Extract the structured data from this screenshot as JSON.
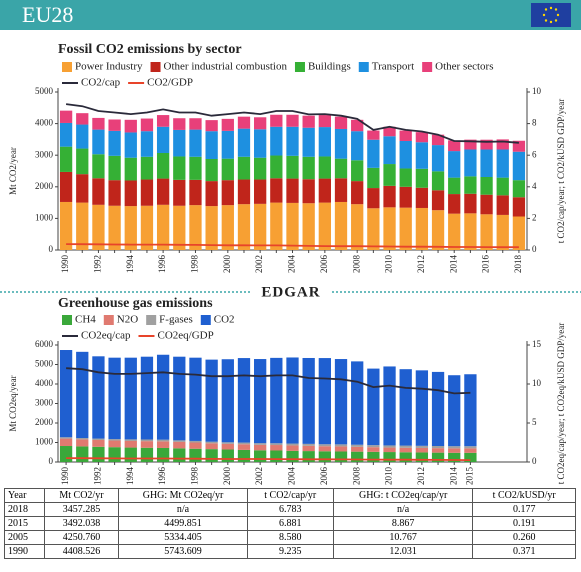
{
  "header": {
    "title": "EU28"
  },
  "logo": {
    "text": "EDGAR"
  },
  "chart_data": [
    {
      "type": "bar",
      "stacked": true,
      "title": "Fossil CO2 emissions by sector",
      "ylabel": "Mt CO2/year",
      "y2label": "t CO2/cap/year; t CO2/kUSD GDP/year",
      "categories": [
        "1990",
        null,
        "1992",
        null,
        "1994",
        null,
        "1996",
        null,
        "1998",
        null,
        "2000",
        null,
        "2002",
        null,
        "2004",
        null,
        "2006",
        null,
        "2008",
        null,
        "2010",
        null,
        "2012",
        null,
        "2014",
        null,
        "2016",
        null,
        "2018"
      ],
      "ylim": [
        0,
        5000
      ],
      "yticks": [
        0,
        1000,
        2000,
        3000,
        4000,
        5000
      ],
      "y2lim": [
        0,
        10
      ],
      "y2ticks": [
        0,
        2,
        4,
        6,
        8,
        10
      ],
      "series": [
        {
          "name": "Power Industry",
          "color": "#f7a033",
          "values": [
            1520,
            1500,
            1430,
            1400,
            1390,
            1400,
            1430,
            1400,
            1420,
            1390,
            1420,
            1450,
            1460,
            1500,
            1490,
            1480,
            1500,
            1520,
            1450,
            1320,
            1350,
            1340,
            1330,
            1260,
            1150,
            1160,
            1130,
            1110,
            1060
          ]
        },
        {
          "name": "Other industrial combustion",
          "color": "#c0251b",
          "values": [
            950,
            900,
            840,
            810,
            810,
            830,
            830,
            820,
            800,
            790,
            790,
            780,
            770,
            770,
            770,
            760,
            760,
            750,
            730,
            640,
            680,
            660,
            640,
            630,
            620,
            620,
            620,
            620,
            610
          ]
        },
        {
          "name": "Buildings",
          "color": "#35b035",
          "values": [
            800,
            810,
            760,
            770,
            720,
            720,
            810,
            740,
            730,
            700,
            680,
            720,
            690,
            720,
            720,
            710,
            700,
            620,
            660,
            640,
            690,
            580,
            600,
            600,
            520,
            550,
            560,
            560,
            540
          ]
        },
        {
          "name": "Transport",
          "color": "#1e90e0",
          "values": [
            750,
            760,
            780,
            790,
            800,
            810,
            830,
            840,
            860,
            880,
            880,
            890,
            900,
            910,
            920,
            920,
            930,
            940,
            920,
            890,
            880,
            870,
            840,
            830,
            840,
            850,
            870,
            890,
            900
          ]
        },
        {
          "name": "Other sectors",
          "color": "#e8407a",
          "values": [
            390,
            360,
            370,
            360,
            400,
            400,
            370,
            370,
            360,
            350,
            380,
            380,
            380,
            380,
            380,
            381,
            380,
            390,
            360,
            290,
            300,
            330,
            320,
            330,
            340,
            312,
            310,
            320,
            347
          ]
        },
        {
          "name": "CO2/cap",
          "type": "line",
          "axis": "y2",
          "color": "#2a2a3a",
          "values": [
            9.235,
            9.1,
            8.8,
            8.7,
            8.6,
            8.7,
            8.9,
            8.7,
            8.7,
            8.5,
            8.6,
            8.7,
            8.6,
            8.8,
            8.8,
            8.58,
            8.6,
            8.5,
            8.3,
            7.6,
            7.8,
            7.6,
            7.5,
            7.3,
            6.9,
            6.881,
            6.85,
            6.87,
            6.783
          ]
        },
        {
          "name": "CO2/GDP",
          "type": "line",
          "axis": "y2",
          "color": "#e8442a",
          "values": [
            0.371,
            0.37,
            0.36,
            0.35,
            0.34,
            0.34,
            0.34,
            0.33,
            0.32,
            0.31,
            0.3,
            0.3,
            0.29,
            0.29,
            0.28,
            0.26,
            0.25,
            0.24,
            0.24,
            0.23,
            0.22,
            0.21,
            0.21,
            0.2,
            0.19,
            0.191,
            0.185,
            0.18,
            0.177
          ]
        }
      ]
    },
    {
      "type": "bar",
      "stacked": true,
      "title": "Greenhouse gas emissions",
      "ylabel": "Mt CO2eq/year",
      "y2label": "t CO2eq/cap/year; t CO2eq/kUSD GDP/year",
      "categories": [
        "1990",
        null,
        "1992",
        null,
        "1994",
        null,
        "1996",
        null,
        "1998",
        null,
        "2000",
        null,
        "2002",
        null,
        "2004",
        null,
        "2006",
        null,
        "2008",
        null,
        "2010",
        null,
        "2012",
        null,
        "2014",
        "2015"
      ],
      "ylim": [
        0,
        6000
      ],
      "yticks": [
        0,
        1000,
        2000,
        3000,
        4000,
        5000,
        6000
      ],
      "y2lim": [
        0,
        15
      ],
      "y2ticks": [
        0,
        5,
        10,
        15
      ],
      "series": [
        {
          "name": "CH4",
          "color": "#3aa83a",
          "values": [
            820,
            800,
            780,
            760,
            740,
            730,
            720,
            700,
            680,
            660,
            640,
            620,
            600,
            590,
            570,
            560,
            550,
            540,
            530,
            520,
            510,
            500,
            490,
            480,
            470,
            470
          ]
        },
        {
          "name": "N2O",
          "color": "#e07a70",
          "values": [
            380,
            360,
            350,
            340,
            340,
            340,
            340,
            330,
            320,
            300,
            290,
            290,
            280,
            280,
            280,
            270,
            260,
            260,
            250,
            240,
            230,
            230,
            230,
            230,
            230,
            230
          ]
        },
        {
          "name": "F-gases",
          "color": "#a0a0a0",
          "values": [
            70,
            70,
            70,
            75,
            80,
            85,
            85,
            80,
            80,
            80,
            80,
            85,
            85,
            90,
            95,
            100,
            100,
            105,
            105,
            105,
            110,
            110,
            110,
            110,
            110,
            110
          ]
        },
        {
          "name": "CO2",
          "color": "#1f5fd0",
          "values": [
            4473,
            4420,
            4220,
            4175,
            4190,
            4245,
            4355,
            4290,
            4270,
            4210,
            4260,
            4335,
            4315,
            4380,
            4415,
            4404,
            4420,
            4375,
            4275,
            3925,
            4050,
            3920,
            3870,
            3800,
            3640,
            3690
          ]
        },
        {
          "name": "CO2eq/cap",
          "type": "line",
          "axis": "y2",
          "color": "#2a2a3a",
          "values": [
            12.031,
            11.9,
            11.5,
            11.3,
            11.3,
            11.4,
            11.5,
            11.3,
            11.2,
            11.0,
            11.0,
            11.1,
            11.0,
            11.1,
            11.1,
            10.767,
            10.7,
            10.6,
            10.3,
            9.6,
            9.8,
            9.5,
            9.4,
            9.2,
            8.8,
            8.867
          ]
        },
        {
          "name": "CO2eq/GDP",
          "type": "line",
          "axis": "y2",
          "color": "#e8442a",
          "values": [
            0.5,
            0.49,
            0.47,
            0.46,
            0.45,
            0.45,
            0.45,
            0.43,
            0.42,
            0.4,
            0.39,
            0.39,
            0.38,
            0.37,
            0.36,
            0.35,
            0.34,
            0.33,
            0.32,
            0.31,
            0.3,
            0.29,
            0.28,
            0.27,
            0.26,
            0.25
          ]
        }
      ]
    }
  ],
  "table": {
    "columns": [
      "Year",
      "Mt CO2/yr",
      "GHG: Mt CO2eq/yr",
      "t CO2/cap/yr",
      "GHG: t CO2eq/cap/yr",
      "t CO2/kUSD/yr"
    ],
    "rows": [
      [
        "2018",
        "3457.285",
        "n/a",
        "6.783",
        "n/a",
        "0.177"
      ],
      [
        "2015",
        "3492.038",
        "4499.851",
        "6.881",
        "8.867",
        "0.191"
      ],
      [
        "2005",
        "4250.760",
        "5334.405",
        "8.580",
        "10.767",
        "0.260"
      ],
      [
        "1990",
        "4408.526",
        "5743.609",
        "9.235",
        "12.031",
        "0.371"
      ]
    ]
  }
}
